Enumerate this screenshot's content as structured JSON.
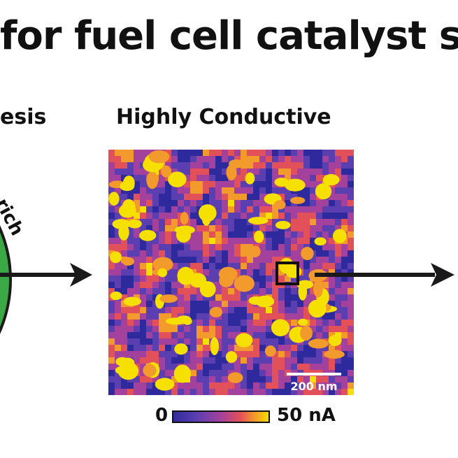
{
  "title": "for fuel cell catalyst s",
  "panels": {
    "left_label": "esis",
    "left_circle_text": "rich",
    "middle_label": "Highly Conductive"
  },
  "map": {
    "scale_bar_label": "200 nm"
  },
  "colorbar": {
    "min_label": "0",
    "max_label": "50 nA",
    "colors": [
      "#2e2a9e",
      "#5b3fb0",
      "#a4419c",
      "#e2505a",
      "#f29a2c",
      "#f5e000"
    ]
  },
  "colors": {
    "circle_fill": "#3aa845",
    "arrow": "#1a1a1a",
    "text": "#111111"
  }
}
